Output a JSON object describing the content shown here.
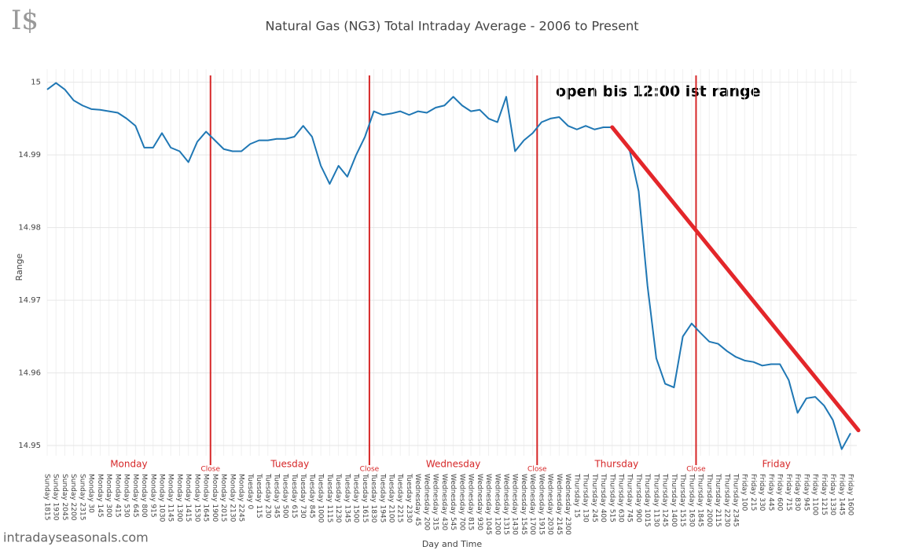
{
  "chart_data": {
    "type": "line",
    "logo": "I$",
    "title": "Natural Gas (NG3) Total Intraday Average - 2006 to Present",
    "y_label": "Range",
    "x_label": "Day and Time",
    "footer": "intradayseasonals.com",
    "annotation": "open bis 12:00 ist range",
    "ylim": [
      14.9486,
      15.0018
    ],
    "yticks": [
      14.95,
      14.96,
      14.97,
      14.98,
      14.99,
      15
    ],
    "grid": true,
    "categories": [
      "Sunday 1815",
      "Sunday 1930",
      "Sunday 2045",
      "Sunday 2200",
      "Sunday 2315",
      "Monday 30",
      "Monday 145",
      "Monday 300",
      "Monday 415",
      "Monday 530",
      "Monday 645",
      "Monday 800",
      "Monday 915",
      "Monday 1030",
      "Monday 1145",
      "Monday 1300",
      "Monday 1415",
      "Monday 1530",
      "Monday 1645",
      "Monday 1900",
      "Monday 2015",
      "Monday 2130",
      "Monday 2245",
      "Tuesday 0",
      "Tuesday 115",
      "Tuesday 230",
      "Tuesday 345",
      "Tuesday 500",
      "Tuesday 615",
      "Tuesday 730",
      "Tuesday 845",
      "Tuesday 1000",
      "Tuesday 1115",
      "Tuesday 1230",
      "Tuesday 1345",
      "Tuesday 1500",
      "Tuesday 1615",
      "Tuesday 1830",
      "Tuesday 1945",
      "Tuesday 2100",
      "Tuesday 2215",
      "Tuesday 2330",
      "Wednesday 45",
      "Wednesday 200",
      "Wednesday 315",
      "Wednesday 430",
      "Wednesday 545",
      "Wednesday 700",
      "Wednesday 815",
      "Wednesday 930",
      "Wednesday 1045",
      "Wednesday 1200",
      "Wednesday 1315",
      "Wednesday 1430",
      "Wednesday 1545",
      "Wednesday 1700",
      "Wednesday 1915",
      "Wednesday 2030",
      "Wednesday 2145",
      "Wednesday 2300",
      "Thursday 15",
      "Thursday 130",
      "Thursday 245",
      "Thursday 400",
      "Thursday 515",
      "Thursday 630",
      "Thursday 745",
      "Thursday 900",
      "Thursday 1015",
      "Thursday 1130",
      "Thursday 1245",
      "Thursday 1400",
      "Thursday 1515",
      "Thursday 1630",
      "Thursday 1845",
      "Thursday 2000",
      "Thursday 2115",
      "Thursday 2230",
      "Thursday 2345",
      "Friday 100",
      "Friday 215",
      "Friday 330",
      "Friday 445",
      "Friday 600",
      "Friday 715",
      "Friday 830",
      "Friday 945",
      "Friday 1100",
      "Friday 1215",
      "Friday 1330",
      "Friday 1445",
      "Friday 1600"
    ],
    "series": [
      {
        "name": "Range",
        "color": "#1f77b4",
        "values": [
          14.999,
          14.9999,
          14.999,
          14.9975,
          14.9968,
          14.9963,
          14.9962,
          14.996,
          14.9958,
          14.995,
          14.994,
          14.991,
          14.991,
          14.993,
          14.991,
          14.9905,
          14.989,
          14.9918,
          14.9932,
          14.992,
          14.9908,
          14.9905,
          14.9905,
          14.9915,
          14.992,
          14.992,
          14.9922,
          14.9922,
          14.9925,
          14.994,
          14.9925,
          14.9885,
          14.986,
          14.9885,
          14.987,
          14.99,
          14.9925,
          14.996,
          14.9955,
          14.9957,
          14.996,
          14.9955,
          14.996,
          14.9958,
          14.9965,
          14.9968,
          14.998,
          14.9968,
          14.996,
          14.9962,
          14.995,
          14.9945,
          14.998,
          14.9905,
          14.992,
          14.993,
          14.9945,
          14.995,
          14.9952,
          14.994,
          14.9935,
          14.994,
          14.9935,
          14.9938,
          14.9938,
          14.9925,
          14.9905,
          14.985,
          14.972,
          14.962,
          14.9585,
          14.958,
          14.965,
          14.9668,
          14.9655,
          14.9643,
          14.964,
          14.963,
          14.9622,
          14.9617,
          14.9615,
          14.961,
          14.9612,
          14.9612,
          14.959,
          14.9545,
          14.9565,
          14.9567,
          14.9555,
          14.9535,
          14.9495,
          14.9517
        ]
      }
    ],
    "close_label": "Close",
    "close_after": [
      "Monday 1645",
      "Tuesday 1615",
      "Wednesday 1700",
      "Thursday 1630"
    ],
    "close_color": "#d62728",
    "day_labels": [
      "Monday",
      "Tuesday",
      "Wednesday",
      "Thursday",
      "Friday"
    ],
    "trend_line": {
      "color": "#e3262a",
      "start_category": "Thursday 515",
      "start_value": 14.9938,
      "end_category": "Friday 1600",
      "end_value": 14.9521
    }
  }
}
